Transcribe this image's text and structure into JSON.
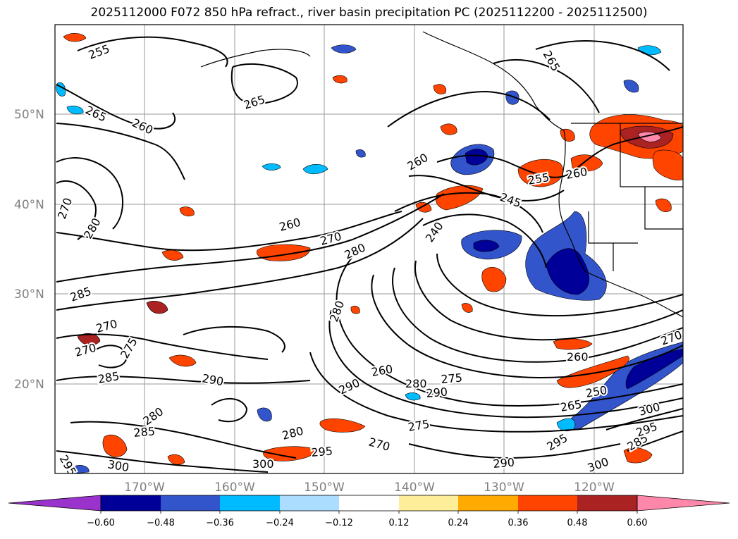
{
  "title": "2025112000 F072 850 hPa refract., river basin precipitation PC (2025112200 - 2025112500)",
  "lat_labels": [
    "50°N",
    "40°N",
    "30°N",
    "20°N"
  ],
  "lon_labels": [
    "170°W",
    "160°W",
    "150°W",
    "140°W",
    "130°W",
    "120°W"
  ],
  "colorbar": {
    "ticks": [
      "−0.60",
      "−0.48",
      "−0.36",
      "−0.24",
      "−0.12",
      "0.12",
      "0.24",
      "0.36",
      "0.48",
      "0.60"
    ],
    "colors": [
      "#9933cc",
      "#000099",
      "#3355cc",
      "#00bbff",
      "#aaddff",
      "#ffffff",
      "#ffee99",
      "#ffaa00",
      "#ff4400",
      "#aa2222",
      "#ff88aa"
    ]
  },
  "contour_labels": [
    {
      "text": "255"
    },
    {
      "text": "265"
    },
    {
      "text": "265"
    },
    {
      "text": "260"
    },
    {
      "text": "260"
    },
    {
      "text": "270"
    },
    {
      "text": "280"
    },
    {
      "text": "285"
    },
    {
      "text": "270"
    },
    {
      "text": "270"
    },
    {
      "text": "275"
    },
    {
      "text": "285"
    },
    {
      "text": "290"
    },
    {
      "text": "280"
    },
    {
      "text": "285"
    },
    {
      "text": "295"
    },
    {
      "text": "300"
    },
    {
      "text": "260"
    },
    {
      "text": "270"
    },
    {
      "text": "280"
    },
    {
      "text": "240"
    },
    {
      "text": "245"
    },
    {
      "text": "255"
    },
    {
      "text": "260"
    },
    {
      "text": "280"
    },
    {
      "text": "260"
    },
    {
      "text": "290"
    },
    {
      "text": "280"
    },
    {
      "text": "290"
    },
    {
      "text": "275"
    },
    {
      "text": "275"
    },
    {
      "text": "270"
    },
    {
      "text": "280"
    },
    {
      "text": "295"
    },
    {
      "text": "300"
    },
    {
      "text": "290"
    },
    {
      "text": "260"
    },
    {
      "text": "250"
    },
    {
      "text": "265"
    },
    {
      "text": "300"
    },
    {
      "text": "295"
    },
    {
      "text": "300"
    },
    {
      "text": "285"
    },
    {
      "text": "270"
    },
    {
      "text": "295"
    },
    {
      "text": "265"
    }
  ]
}
